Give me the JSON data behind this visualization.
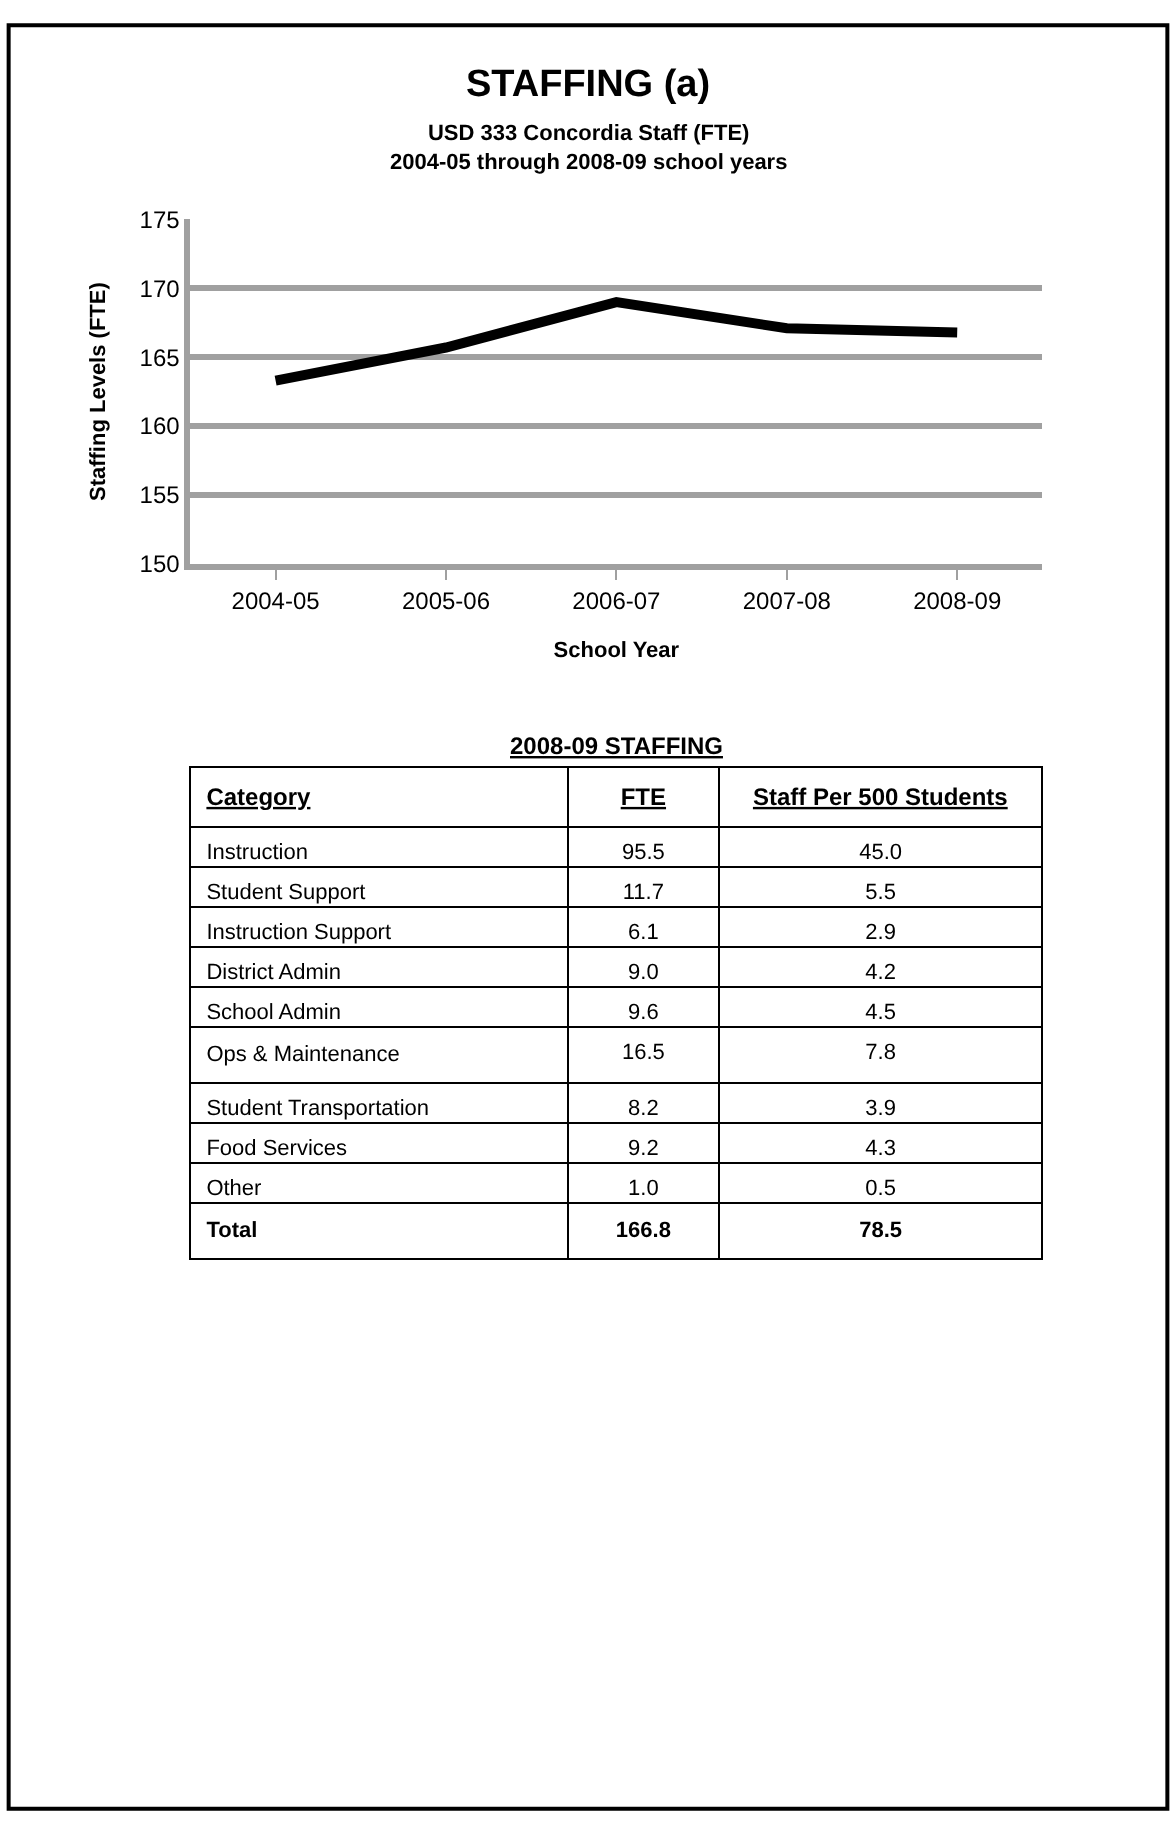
{
  "chart_data": [
    {
      "type": "line",
      "title": "STAFFING (a)",
      "subtitle": "USD 333 Concordia Staff (FTE)\n2004-05 through 2008-09 school years",
      "xlabel": "School Year",
      "ylabel": "Staffing Levels (FTE)",
      "categories": [
        "2004-05",
        "2005-06",
        "2006-07",
        "2007-08",
        "2008-09"
      ],
      "series": [
        {
          "color": "#000000",
          "values": [
            163.3,
            165.7,
            169.0,
            167.1,
            166.8
          ]
        }
      ],
      "ylim": [
        150,
        175
      ],
      "yticks": [
        150,
        155,
        160,
        165,
        170,
        175
      ],
      "grid": "y",
      "marker": "none",
      "line_style": "solid"
    },
    {
      "type": "other",
      "title": "2008-09 STAFFING",
      "xlabel": "Category",
      "categories": [
        "Instruction",
        "Student Support",
        "Instruction Support",
        "District Admin",
        "School Admin",
        "Ops & Maintenance",
        "Student Transportation",
        "Food Services",
        "Other",
        "Total"
      ],
      "series": [
        {
          "name": "FTE",
          "values": [
            95.5,
            11.7,
            6.1,
            9.0,
            9.6,
            16.5,
            8.2,
            9.2,
            1.0,
            166.8
          ],
          "value_labels": [
            "95.5",
            "11.7",
            "6.1",
            "9.0",
            "9.6",
            "16.5",
            "8.2",
            "9.2",
            "1.0",
            "166.8"
          ]
        },
        {
          "name": "Staff Per 500 Students",
          "values": [
            45.0,
            5.5,
            2.9,
            4.2,
            4.5,
            7.8,
            3.9,
            4.3,
            0.5,
            78.5
          ],
          "value_labels": [
            "45.0",
            "5.5",
            "2.9",
            "4.2",
            "4.5",
            "7.8",
            "3.9",
            "4.3",
            "0.5",
            "78.5"
          ]
        }
      ]
    }
  ]
}
